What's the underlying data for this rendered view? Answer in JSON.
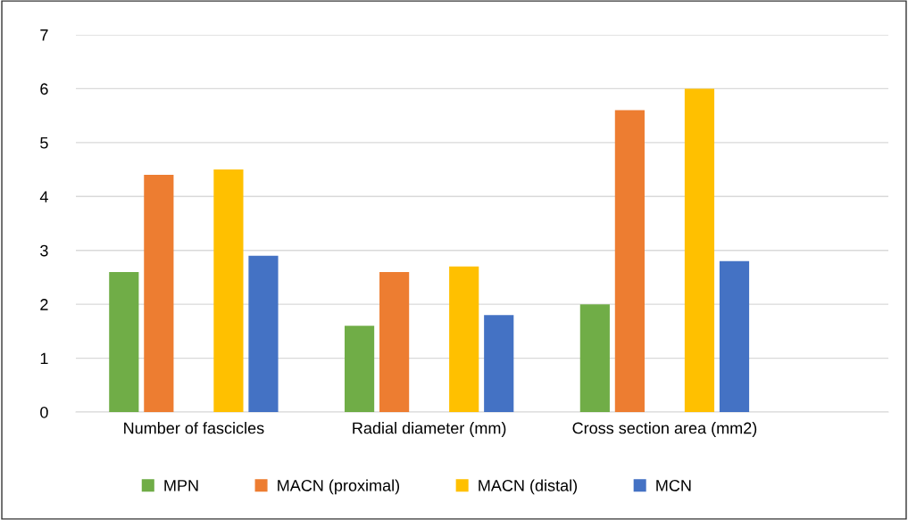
{
  "chart_data": {
    "type": "bar",
    "categories": [
      "Number of fascicles",
      "Radial diameter (mm)",
      "Cross section area (mm2)"
    ],
    "series": [
      {
        "name": "MPN",
        "color": "#70ad47",
        "values": [
          2.6,
          1.6,
          2.0
        ]
      },
      {
        "name": "MACN (proximal)",
        "color": "#ed7d31",
        "values": [
          4.4,
          2.6,
          5.6
        ]
      },
      {
        "name": "MACN (distal)",
        "color": "#ffc000",
        "values": [
          4.5,
          2.7,
          6.0
        ]
      },
      {
        "name": "MCN",
        "color": "#4472c4",
        "values": [
          2.9,
          1.8,
          2.8
        ]
      }
    ],
    "ylim": [
      0,
      7
    ],
    "yticks": [
      0,
      1,
      2,
      3,
      4,
      5,
      6,
      7
    ],
    "grid": "y",
    "legend": "bottom"
  }
}
